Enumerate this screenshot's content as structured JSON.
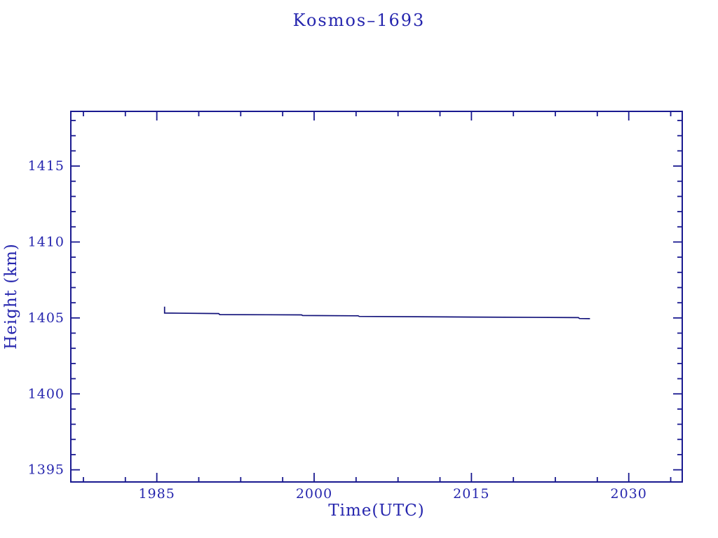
{
  "title": "Kosmos–1693",
  "colors": {
    "background": "#ffffff",
    "text": "#2626ae",
    "axis": "#1a1a90",
    "line": "#12127a"
  },
  "chart_data": {
    "type": "line",
    "title": "Kosmos–1693",
    "xlabel": "Time(UTC)",
    "ylabel": "Height (km)",
    "xlim": [
      1976.8,
      2035.1
    ],
    "ylim": [
      1394.2,
      1418.6
    ],
    "grid": false,
    "legend_position": "none",
    "x_major_ticks": [
      1985,
      2000,
      2015,
      2030
    ],
    "x_major_tick_labels": [
      "1985",
      "2000",
      "2015",
      "2030"
    ],
    "x_minor_ticks": [
      1978,
      1982,
      1989,
      1993,
      1997,
      2004,
      2008,
      2012,
      2019,
      2023,
      2027,
      2034
    ],
    "y_major_ticks": [
      1395,
      1400,
      1405,
      1410,
      1415
    ],
    "y_major_tick_labels": [
      "1395",
      "1400",
      "1405",
      "1410",
      "1415"
    ],
    "y_minor_ticks": [
      1396,
      1397,
      1398,
      1399,
      1401,
      1402,
      1403,
      1404,
      1406,
      1407,
      1408,
      1409,
      1411,
      1412,
      1413,
      1414,
      1416,
      1417,
      1418
    ],
    "series": [
      {
        "name": "orbital-height",
        "points": [
          [
            1985.74,
            1405.74
          ],
          [
            1985.74,
            1405.32
          ],
          [
            1990.9,
            1405.29
          ],
          [
            1991.0,
            1405.22
          ],
          [
            1998.8,
            1405.2
          ],
          [
            1998.9,
            1405.16
          ],
          [
            2004.2,
            1405.14
          ],
          [
            2004.3,
            1405.1
          ],
          [
            2015.0,
            1405.06
          ],
          [
            2025.2,
            1405.02
          ],
          [
            2025.3,
            1404.96
          ],
          [
            2026.3,
            1404.95
          ]
        ]
      }
    ]
  }
}
